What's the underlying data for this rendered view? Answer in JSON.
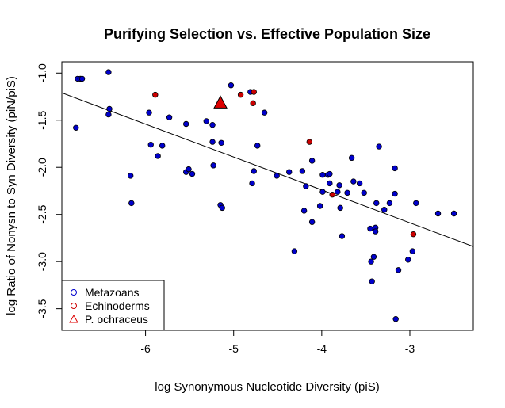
{
  "chart_data": {
    "type": "scatter",
    "title": "Purifying Selection vs. Effective Population Size",
    "xlabel": "log Synonymous Nucleotide Diversity (piS)",
    "ylabel": "log Ratio of Nonysn to Syn Diversity (piN/piS)",
    "xlim": [
      -6.95,
      -2.28
    ],
    "ylim": [
      -3.73,
      -0.88
    ],
    "xticks": [
      -6,
      -5,
      -4,
      -3
    ],
    "xtick_labels": [
      "-6",
      "-5",
      "-4",
      "-3"
    ],
    "yticks": [
      -1.0,
      -1.5,
      -2.0,
      -2.5,
      -3.0,
      -3.5
    ],
    "ytick_labels": [
      "-1.0",
      "-1.5",
      "-2.0",
      "-2.5",
      "-3.0",
      "-3.5"
    ],
    "grid": false,
    "legend_position": "bottom-left",
    "colors": {
      "metazoans": "#0000cc",
      "echinoderms": "#cc0000",
      "ochraceus": "#dd0000"
    },
    "series": [
      {
        "name": "Metazoans",
        "marker": "circle",
        "color": "#0000cc",
        "points": [
          [
            -6.77,
            -1.06
          ],
          [
            -6.74,
            -1.06
          ],
          [
            -6.72,
            -1.06
          ],
          [
            -6.42,
            -0.99
          ],
          [
            -6.79,
            -1.58
          ],
          [
            -6.41,
            -1.38
          ],
          [
            -6.42,
            -1.44
          ],
          [
            -6.17,
            -2.09
          ],
          [
            -6.16,
            -2.38
          ],
          [
            -5.96,
            -1.42
          ],
          [
            -5.94,
            -1.76
          ],
          [
            -5.86,
            -1.88
          ],
          [
            -5.81,
            -1.77
          ],
          [
            -5.73,
            -1.47
          ],
          [
            -5.54,
            -1.54
          ],
          [
            -5.54,
            -2.05
          ],
          [
            -5.51,
            -2.02
          ],
          [
            -5.47,
            -2.07
          ],
          [
            -5.31,
            -1.51
          ],
          [
            -5.24,
            -1.55
          ],
          [
            -5.24,
            -1.73
          ],
          [
            -5.23,
            -1.98
          ],
          [
            -5.14,
            -1.74
          ],
          [
            -5.15,
            -2.4
          ],
          [
            -5.13,
            -2.43
          ],
          [
            -5.03,
            -1.13
          ],
          [
            -4.81,
            -1.2
          ],
          [
            -4.79,
            -2.17
          ],
          [
            -4.77,
            -2.04
          ],
          [
            -4.73,
            -1.77
          ],
          [
            -4.65,
            -1.42
          ],
          [
            -4.51,
            -2.09
          ],
          [
            -4.37,
            -2.05
          ],
          [
            -4.31,
            -2.89
          ],
          [
            -4.22,
            -2.04
          ],
          [
            -4.2,
            -2.46
          ],
          [
            -4.18,
            -2.2
          ],
          [
            -4.11,
            -1.93
          ],
          [
            -4.11,
            -2.58
          ],
          [
            -4.02,
            -2.41
          ],
          [
            -3.99,
            -2.08
          ],
          [
            -3.99,
            -2.26
          ],
          [
            -3.93,
            -2.08
          ],
          [
            -3.91,
            -2.07
          ],
          [
            -3.91,
            -2.17
          ],
          [
            -3.82,
            -2.26
          ],
          [
            -3.8,
            -2.19
          ],
          [
            -3.79,
            -2.43
          ],
          [
            -3.77,
            -2.73
          ],
          [
            -3.71,
            -2.27
          ],
          [
            -3.66,
            -1.9
          ],
          [
            -3.64,
            -2.15
          ],
          [
            -3.57,
            -2.17
          ],
          [
            -3.52,
            -2.27
          ],
          [
            -3.45,
            -2.65
          ],
          [
            -3.44,
            -3.0
          ],
          [
            -3.43,
            -3.21
          ],
          [
            -3.41,
            -2.95
          ],
          [
            -3.39,
            -2.64
          ],
          [
            -3.39,
            -2.68
          ],
          [
            -3.38,
            -2.38
          ],
          [
            -3.35,
            -1.78
          ],
          [
            -3.29,
            -2.45
          ],
          [
            -3.23,
            -2.38
          ],
          [
            -3.17,
            -2.01
          ],
          [
            -3.17,
            -2.28
          ],
          [
            -3.16,
            -3.61
          ],
          [
            -3.13,
            -3.09
          ],
          [
            -3.02,
            -2.98
          ],
          [
            -2.97,
            -2.89
          ],
          [
            -2.93,
            -2.38
          ],
          [
            -2.68,
            -2.49
          ],
          [
            -2.5,
            -2.49
          ]
        ]
      },
      {
        "name": "Echinoderms",
        "marker": "circle",
        "color": "#cc0000",
        "points": [
          [
            -5.89,
            -1.23
          ],
          [
            -4.92,
            -1.23
          ],
          [
            -4.77,
            -1.2
          ],
          [
            -4.78,
            -1.32
          ],
          [
            -4.14,
            -1.73
          ],
          [
            -3.88,
            -2.29
          ],
          [
            -2.96,
            -2.71
          ]
        ]
      },
      {
        "name": "P. ochraceus",
        "marker": "triangle",
        "color": "#dd0000",
        "points": [
          [
            -5.15,
            -1.32
          ]
        ]
      }
    ],
    "regression_line": {
      "x": [
        -6.95,
        -2.28
      ],
      "y": [
        -1.21,
        -2.84
      ]
    }
  }
}
